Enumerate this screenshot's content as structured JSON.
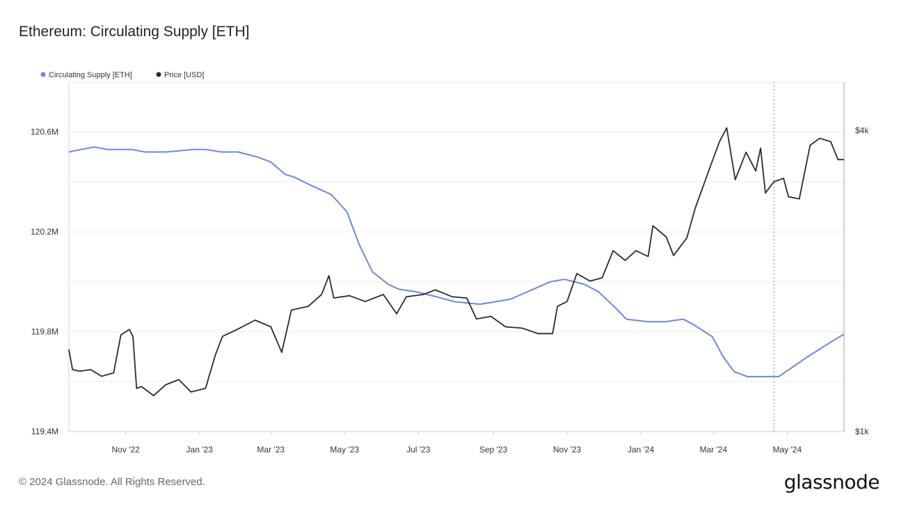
{
  "title": "Ethereum: Circulating Supply [ETH]",
  "footer": "© 2024 Glassnode. All Rights Reserved.",
  "logo_text": "glassnode",
  "colors": {
    "supply": "#6b86e8",
    "price": "#2a2a2a",
    "grid": "#ececec",
    "axis": "#c9c9c9"
  },
  "chart_data": {
    "type": "line",
    "title": "Ethereum: Circulating Supply [ETH]",
    "legend_position": "top-left",
    "grid": true,
    "x_ticks": [
      "Nov '22",
      "Jan '23",
      "Mar '23",
      "May '23",
      "Jul '23",
      "Sep '23",
      "Nov '23",
      "Jan '24",
      "Mar '24",
      "May '24"
    ],
    "xlim": [
      "2022-09-15",
      "2024-06-17"
    ],
    "y_left": {
      "label": "",
      "ticks": [
        "119.4M",
        "119.8M",
        "120.2M",
        "120.6M"
      ],
      "tick_values": [
        119.4,
        119.8,
        120.2,
        120.6
      ],
      "lim": [
        119.4,
        120.8
      ],
      "unit": "M ETH"
    },
    "y_right": {
      "label": "",
      "ticks": [
        "$1k",
        "$4k"
      ],
      "tick_values": [
        1000,
        4000
      ],
      "scale": "log",
      "lim": [
        1000,
        5000
      ]
    },
    "marker": {
      "date": "2024-04-20",
      "style": "dotted"
    },
    "series": [
      {
        "name": "Circulating Supply [ETH]",
        "axis": "left",
        "points": [
          [
            "2022-09-15",
            120.52
          ],
          [
            "2022-09-25",
            120.53
          ],
          [
            "2022-10-06",
            120.54
          ],
          [
            "2022-10-17",
            120.53
          ],
          [
            "2022-11-06",
            120.53
          ],
          [
            "2022-11-17",
            120.52
          ],
          [
            "2022-12-04",
            120.52
          ],
          [
            "2022-12-27",
            120.53
          ],
          [
            "2023-01-06",
            120.53
          ],
          [
            "2023-01-19",
            120.52
          ],
          [
            "2023-02-02",
            120.52
          ],
          [
            "2023-02-18",
            120.5
          ],
          [
            "2023-03-01",
            120.48
          ],
          [
            "2023-03-13",
            120.43
          ],
          [
            "2023-03-20",
            120.42
          ],
          [
            "2023-04-06",
            120.38
          ],
          [
            "2023-04-20",
            120.35
          ],
          [
            "2023-05-03",
            120.28
          ],
          [
            "2023-05-13",
            120.15
          ],
          [
            "2023-05-24",
            120.04
          ],
          [
            "2023-06-06",
            119.99
          ],
          [
            "2023-06-15",
            119.97
          ],
          [
            "2023-06-29",
            119.96
          ],
          [
            "2023-07-16",
            119.94
          ],
          [
            "2023-07-31",
            119.92
          ],
          [
            "2023-08-21",
            119.91
          ],
          [
            "2023-09-15",
            119.93
          ],
          [
            "2023-10-04",
            119.97
          ],
          [
            "2023-10-18",
            120.0
          ],
          [
            "2023-10-30",
            120.01
          ],
          [
            "2023-11-15",
            119.99
          ],
          [
            "2023-11-27",
            119.96
          ],
          [
            "2023-12-10",
            119.9
          ],
          [
            "2023-12-20",
            119.85
          ],
          [
            "2024-01-07",
            119.84
          ],
          [
            "2024-01-21",
            119.84
          ],
          [
            "2024-02-05",
            119.85
          ],
          [
            "2024-02-13",
            119.83
          ],
          [
            "2024-02-29",
            119.78
          ],
          [
            "2024-03-09",
            119.7
          ],
          [
            "2024-03-18",
            119.64
          ],
          [
            "2024-03-29",
            119.62
          ],
          [
            "2024-04-11",
            119.62
          ],
          [
            "2024-04-24",
            119.62
          ],
          [
            "2024-05-06",
            119.66
          ],
          [
            "2024-05-18",
            119.7
          ],
          [
            "2024-05-31",
            119.74
          ],
          [
            "2024-06-10",
            119.77
          ],
          [
            "2024-06-17",
            119.79
          ]
        ]
      },
      {
        "name": "Price [USD]",
        "axis": "right",
        "points": [
          [
            "2022-09-15",
            1460
          ],
          [
            "2022-09-18",
            1330
          ],
          [
            "2022-09-24",
            1320
          ],
          [
            "2022-10-03",
            1330
          ],
          [
            "2022-10-12",
            1290
          ],
          [
            "2022-10-22",
            1310
          ],
          [
            "2022-10-28",
            1560
          ],
          [
            "2022-11-04",
            1600
          ],
          [
            "2022-11-07",
            1550
          ],
          [
            "2022-11-10",
            1220
          ],
          [
            "2022-11-14",
            1230
          ],
          [
            "2022-11-24",
            1180
          ],
          [
            "2022-12-04",
            1240
          ],
          [
            "2022-12-15",
            1270
          ],
          [
            "2022-12-25",
            1200
          ],
          [
            "2023-01-06",
            1220
          ],
          [
            "2023-01-14",
            1420
          ],
          [
            "2023-01-20",
            1550
          ],
          [
            "2023-02-01",
            1600
          ],
          [
            "2023-02-16",
            1670
          ],
          [
            "2023-03-01",
            1620
          ],
          [
            "2023-03-10",
            1440
          ],
          [
            "2023-03-18",
            1750
          ],
          [
            "2023-04-01",
            1780
          ],
          [
            "2023-04-12",
            1880
          ],
          [
            "2023-04-18",
            2050
          ],
          [
            "2023-04-22",
            1850
          ],
          [
            "2023-05-05",
            1870
          ],
          [
            "2023-05-18",
            1820
          ],
          [
            "2023-06-02",
            1880
          ],
          [
            "2023-06-13",
            1720
          ],
          [
            "2023-06-21",
            1860
          ],
          [
            "2023-07-05",
            1880
          ],
          [
            "2023-07-15",
            1920
          ],
          [
            "2023-07-29",
            1860
          ],
          [
            "2023-08-10",
            1850
          ],
          [
            "2023-08-18",
            1680
          ],
          [
            "2023-08-30",
            1700
          ],
          [
            "2023-09-11",
            1620
          ],
          [
            "2023-09-25",
            1610
          ],
          [
            "2023-10-08",
            1570
          ],
          [
            "2023-10-20",
            1570
          ],
          [
            "2023-10-24",
            1780
          ],
          [
            "2023-11-01",
            1820
          ],
          [
            "2023-11-09",
            2070
          ],
          [
            "2023-11-20",
            2000
          ],
          [
            "2023-11-30",
            2030
          ],
          [
            "2023-12-09",
            2300
          ],
          [
            "2023-12-19",
            2200
          ],
          [
            "2023-12-28",
            2300
          ],
          [
            "2024-01-07",
            2240
          ],
          [
            "2024-01-11",
            2580
          ],
          [
            "2024-01-22",
            2450
          ],
          [
            "2024-01-28",
            2250
          ],
          [
            "2024-02-08",
            2440
          ],
          [
            "2024-02-15",
            2800
          ],
          [
            "2024-02-28",
            3420
          ],
          [
            "2024-03-06",
            3800
          ],
          [
            "2024-03-12",
            4050
          ],
          [
            "2024-03-19",
            3190
          ],
          [
            "2024-03-28",
            3620
          ],
          [
            "2024-04-05",
            3320
          ],
          [
            "2024-04-09",
            3690
          ],
          [
            "2024-04-13",
            3000
          ],
          [
            "2024-04-20",
            3160
          ],
          [
            "2024-04-28",
            3210
          ],
          [
            "2024-05-02",
            2950
          ],
          [
            "2024-05-11",
            2920
          ],
          [
            "2024-05-20",
            3740
          ],
          [
            "2024-05-28",
            3860
          ],
          [
            "2024-06-06",
            3800
          ],
          [
            "2024-06-12",
            3500
          ],
          [
            "2024-06-17",
            3500
          ]
        ]
      }
    ]
  }
}
